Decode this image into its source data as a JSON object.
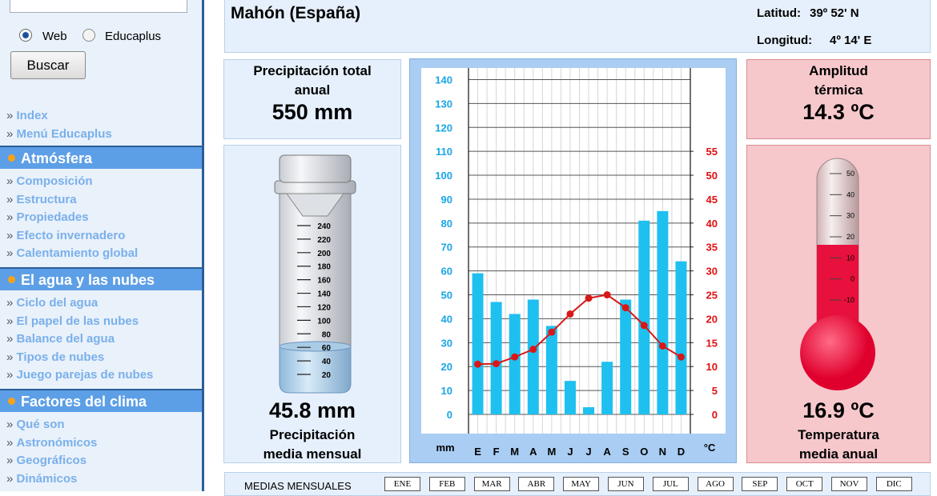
{
  "sidebar": {
    "search_options": [
      "Web",
      "Educaplus"
    ],
    "search_button": "Buscar",
    "links": [
      "Index",
      "Menú Educaplus"
    ],
    "sections": [
      {
        "title": "Atmósfera",
        "links": [
          "Composición",
          "Estructura",
          "Propiedades",
          "Efecto invernadero",
          "Calentamiento global"
        ]
      },
      {
        "title": "El agua y las nubes",
        "links": [
          "Ciclo del agua",
          "El papel de las nubes",
          "Balance del agua",
          "Tipos de nubes",
          "Juego parejas de nubes"
        ]
      },
      {
        "title": "Factores del clima",
        "links": [
          "Qué son",
          "Astronómicos",
          "Geográficos",
          "Dinámicos"
        ]
      }
    ]
  },
  "header": {
    "station": "Mahón (España)",
    "latitude_label": "Latitud:",
    "latitude": "39º 52' N",
    "longitude_label": "Longitud:",
    "longitude": "4º 14' E"
  },
  "panels": {
    "total_precip_label": "Precipitación total anual",
    "total_precip": "550 mm",
    "mean_precip": "45.8 mm",
    "mean_precip_label": "Precipitación media mensual",
    "amplitude_label": "Amplitud térmica",
    "amplitude": "14.3 ºC",
    "mean_temp": "16.9 ºC",
    "mean_temp_label": "Temperatura media anual",
    "cylinder_scale": [
      20,
      40,
      60,
      80,
      100,
      120,
      140,
      160,
      180,
      200,
      220,
      240
    ],
    "thermometer_scale": [
      -10,
      0,
      10,
      20,
      30,
      40,
      50
    ]
  },
  "chart_data": {
    "type": "climograph",
    "y_label": "mm",
    "y2_label": "°C",
    "categories": [
      "E",
      "F",
      "M",
      "A",
      "M",
      "J",
      "J",
      "A",
      "S",
      "O",
      "N",
      "D"
    ],
    "series": [
      {
        "type": "bar",
        "color": "#1ec0f0",
        "values": [
          59,
          47,
          42,
          48,
          37,
          14,
          3,
          22,
          48,
          81,
          85,
          64
        ]
      },
      {
        "type": "line",
        "axis": "y2",
        "color": "#d81818",
        "values": [
          10.5,
          10.6,
          12,
          13.6,
          17.2,
          21,
          24.3,
          25,
          22.3,
          18.6,
          14.3,
          12
        ]
      }
    ],
    "ylim": [
      0,
      144
    ],
    "yticks": [
      0,
      10,
      20,
      30,
      40,
      50,
      60,
      70,
      80,
      90,
      100,
      110,
      120,
      130,
      140
    ],
    "y2lim": [
      0,
      72
    ],
    "y2ticks": [
      0,
      5,
      10,
      15,
      20,
      25,
      30,
      35,
      40,
      45,
      50,
      55
    ],
    "grid": true
  },
  "monthly_table": {
    "title": "MEDIAS MENSUALES",
    "months": [
      "ENE",
      "FEB",
      "MAR",
      "ABR",
      "MAY",
      "JUN",
      "JUL",
      "AGO",
      "SEP",
      "OCT",
      "NOV",
      "DIC"
    ]
  }
}
